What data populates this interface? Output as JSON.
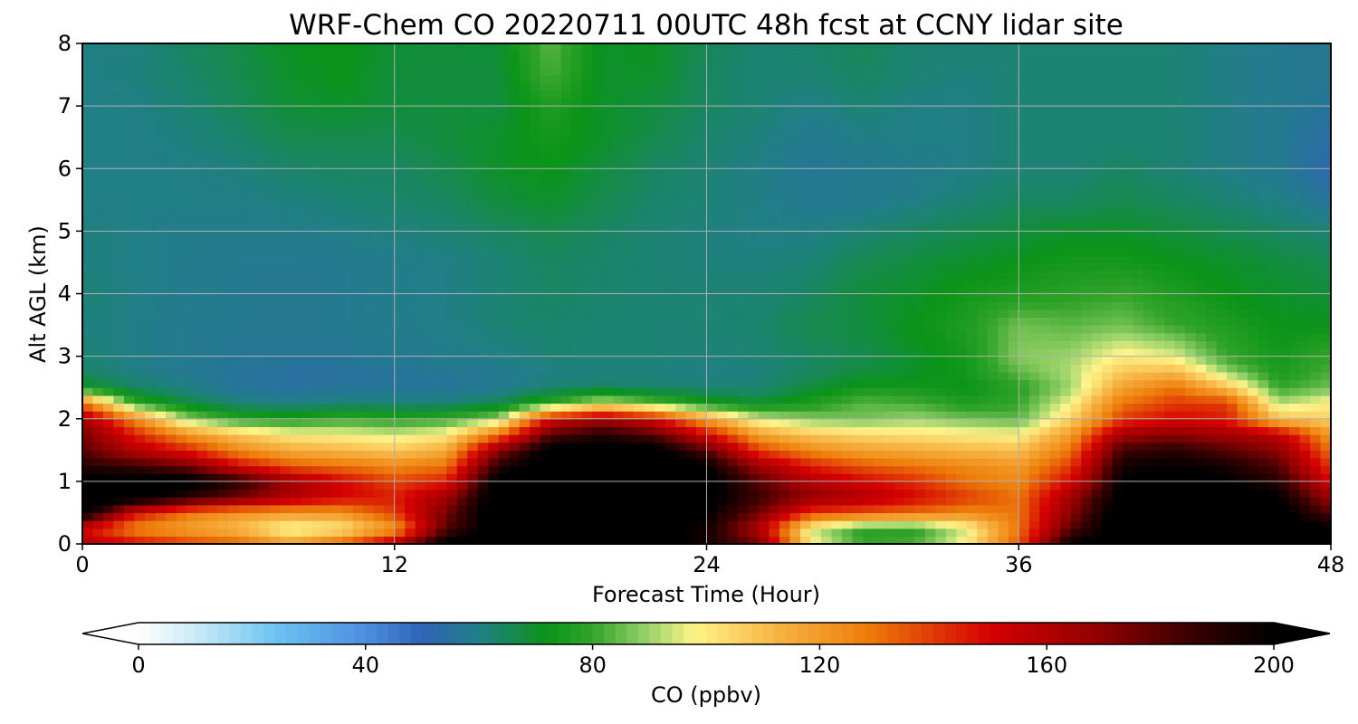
{
  "chart_data": {
    "type": "heatmap",
    "title": "WRF-Chem CO  20220711 00UTC 48h fcst at CCNY lidar site",
    "xlabel": "Forecast Time (Hour)",
    "ylabel": "Alt AGL (km)",
    "xlim": [
      0,
      48
    ],
    "ylim": [
      0,
      8
    ],
    "x_ticks": [
      0,
      12,
      24,
      36,
      48
    ],
    "x_tick_labels": [
      "0",
      "12",
      "24",
      "36",
      "48"
    ],
    "y_ticks": [
      0,
      1,
      2,
      3,
      4,
      5,
      6,
      7,
      8
    ],
    "y_tick_labels": [
      "0",
      "1",
      "2",
      "3",
      "4",
      "5",
      "6",
      "7",
      "8"
    ],
    "grid": true,
    "colorbar": {
      "label": "CO  (ppbv)",
      "range": [
        0,
        200
      ],
      "extend": "both",
      "ticks": [
        0,
        40,
        80,
        120,
        160,
        200
      ],
      "tick_labels": [
        "0",
        "40",
        "80",
        "120",
        "160",
        "200"
      ],
      "palette": [
        {
          "value": 0,
          "color": "#ffffff"
        },
        {
          "value": 12,
          "color": "#bfe6f7"
        },
        {
          "value": 24,
          "color": "#6cc3f0"
        },
        {
          "value": 40,
          "color": "#4d8fe0"
        },
        {
          "value": 50,
          "color": "#2f63b8"
        },
        {
          "value": 60,
          "color": "#217f86"
        },
        {
          "value": 72,
          "color": "#0a9418"
        },
        {
          "value": 80,
          "color": "#33a42a"
        },
        {
          "value": 90,
          "color": "#9bd36b"
        },
        {
          "value": 98,
          "color": "#fff48a"
        },
        {
          "value": 112,
          "color": "#f7b545"
        },
        {
          "value": 128,
          "color": "#ee7f0b"
        },
        {
          "value": 150,
          "color": "#d50000"
        },
        {
          "value": 170,
          "color": "#8e0000"
        },
        {
          "value": 185,
          "color": "#3a0000"
        },
        {
          "value": 200,
          "color": "#000000"
        }
      ]
    },
    "hours": [
      0,
      2,
      4,
      6,
      8,
      10,
      12,
      14,
      16,
      18,
      20,
      22,
      24,
      26,
      28,
      30,
      32,
      34,
      36,
      38,
      40,
      42,
      44,
      46,
      48
    ],
    "altitudes_km": [
      0,
      0.25,
      0.5,
      0.75,
      1,
      1.25,
      1.5,
      1.75,
      2,
      2.25,
      2.5,
      2.75,
      3,
      3.5,
      4,
      4.5,
      5,
      5.5,
      6,
      6.5,
      7,
      7.5,
      8
    ],
    "values_ppbv": [
      [
        160,
        150,
        140,
        135,
        120,
        135,
        160,
        205,
        210,
        210,
        210,
        205,
        195,
        175,
        100,
        80,
        82,
        100,
        135,
        200,
        210,
        210,
        210,
        210,
        205
      ],
      [
        150,
        125,
        118,
        110,
        95,
        100,
        120,
        180,
        210,
        210,
        210,
        205,
        195,
        160,
        95,
        78,
        78,
        95,
        130,
        180,
        210,
        210,
        210,
        210,
        200
      ],
      [
        205,
        150,
        130,
        122,
        120,
        122,
        140,
        175,
        210,
        210,
        210,
        210,
        200,
        175,
        140,
        135,
        130,
        125,
        130,
        170,
        210,
        210,
        210,
        205,
        180
      ],
      [
        210,
        205,
        190,
        175,
        160,
        150,
        145,
        165,
        210,
        210,
        210,
        210,
        205,
        185,
        168,
        160,
        150,
        140,
        130,
        165,
        205,
        210,
        210,
        200,
        165
      ],
      [
        210,
        210,
        205,
        190,
        165,
        150,
        138,
        145,
        205,
        210,
        210,
        210,
        205,
        180,
        160,
        150,
        142,
        130,
        125,
        150,
        200,
        205,
        200,
        190,
        150
      ],
      [
        190,
        185,
        175,
        150,
        135,
        130,
        125,
        130,
        190,
        210,
        210,
        210,
        200,
        165,
        145,
        135,
        130,
        125,
        120,
        140,
        195,
        200,
        195,
        180,
        140
      ],
      [
        180,
        160,
        145,
        125,
        115,
        112,
        108,
        115,
        170,
        205,
        210,
        205,
        180,
        140,
        125,
        118,
        115,
        112,
        110,
        130,
        185,
        190,
        180,
        170,
        130
      ],
      [
        175,
        145,
        122,
        108,
        100,
        98,
        95,
        100,
        130,
        180,
        190,
        180,
        150,
        118,
        108,
        104,
        102,
        100,
        98,
        120,
        165,
        170,
        165,
        155,
        120
      ],
      [
        165,
        125,
        90,
        78,
        76,
        80,
        78,
        80,
        90,
        150,
        165,
        150,
        118,
        95,
        88,
        86,
        90,
        86,
        84,
        105,
        140,
        150,
        145,
        110,
        105
      ],
      [
        130,
        80,
        68,
        62,
        60,
        62,
        62,
        62,
        66,
        80,
        95,
        85,
        74,
        70,
        76,
        84,
        82,
        76,
        80,
        98,
        130,
        140,
        140,
        92,
        100
      ],
      [
        72,
        64,
        60,
        56,
        55,
        56,
        56,
        56,
        58,
        62,
        64,
        63,
        62,
        62,
        68,
        74,
        74,
        72,
        78,
        90,
        118,
        130,
        110,
        80,
        86
      ],
      [
        64,
        60,
        58,
        56,
        55,
        55,
        56,
        57,
        58,
        60,
        61,
        61,
        60,
        61,
        64,
        68,
        70,
        74,
        84,
        92,
        108,
        112,
        90,
        75,
        82
      ],
      [
        62,
        60,
        58,
        57,
        57,
        57,
        58,
        59,
        60,
        62,
        62,
        62,
        61,
        62,
        64,
        66,
        70,
        74,
        88,
        90,
        100,
        96,
        80,
        74,
        80
      ],
      [
        61,
        60,
        58,
        58,
        58,
        58,
        59,
        60,
        62,
        63,
        62,
        62,
        62,
        63,
        66,
        68,
        72,
        76,
        86,
        84,
        86,
        80,
        76,
        72,
        72
      ],
      [
        62,
        60,
        59,
        58,
        58,
        58,
        59,
        60,
        62,
        64,
        63,
        62,
        62,
        62,
        64,
        68,
        70,
        74,
        76,
        78,
        80,
        76,
        72,
        70,
        68
      ],
      [
        61,
        60,
        59,
        58,
        58,
        58,
        59,
        60,
        62,
        64,
        63,
        62,
        61,
        61,
        62,
        66,
        68,
        70,
        72,
        74,
        74,
        72,
        70,
        68,
        66
      ],
      [
        61,
        60,
        59,
        59,
        59,
        60,
        61,
        62,
        64,
        66,
        64,
        62,
        61,
        60,
        60,
        62,
        64,
        66,
        68,
        70,
        70,
        68,
        66,
        64,
        62
      ],
      [
        60,
        60,
        60,
        60,
        61,
        62,
        63,
        64,
        68,
        70,
        66,
        63,
        62,
        60,
        58,
        58,
        60,
        62,
        64,
        64,
        66,
        64,
        62,
        60,
        56
      ],
      [
        60,
        60,
        60,
        61,
        63,
        64,
        64,
        66,
        70,
        72,
        68,
        64,
        62,
        60,
        57,
        58,
        59,
        60,
        62,
        62,
        64,
        62,
        60,
        58,
        52
      ],
      [
        60,
        60,
        61,
        63,
        66,
        66,
        66,
        68,
        70,
        74,
        70,
        66,
        63,
        61,
        58,
        60,
        60,
        60,
        62,
        62,
        62,
        62,
        60,
        58,
        54
      ],
      [
        60,
        60,
        62,
        65,
        69,
        70,
        68,
        68,
        68,
        76,
        70,
        68,
        64,
        62,
        60,
        62,
        60,
        60,
        62,
        62,
        62,
        62,
        60,
        58,
        56
      ],
      [
        60,
        61,
        63,
        66,
        70,
        72,
        68,
        68,
        68,
        82,
        70,
        70,
        64,
        62,
        62,
        64,
        62,
        61,
        62,
        62,
        62,
        62,
        60,
        58,
        58
      ],
      [
        60,
        61,
        64,
        67,
        71,
        72,
        69,
        68,
        69,
        84,
        70,
        71,
        65,
        62,
        63,
        65,
        62,
        62,
        62,
        62,
        62,
        62,
        60,
        58,
        58
      ]
    ]
  }
}
